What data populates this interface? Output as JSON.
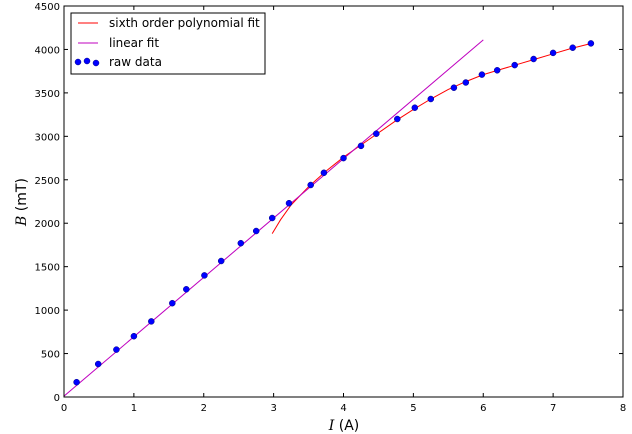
{
  "chart_data": {
    "type": "line",
    "title": "",
    "xlabel": "I (A)",
    "xlabel_var": "I",
    "xlabel_unit": " (A)",
    "ylabel": "B (mT)",
    "ylabel_var": "B",
    "ylabel_unit": " (mT)",
    "xlim": [
      0,
      8
    ],
    "ylim": [
      0,
      4500
    ],
    "xticks": [
      0,
      1,
      2,
      3,
      4,
      5,
      6,
      7,
      8
    ],
    "yticks": [
      0,
      500,
      1000,
      1500,
      2000,
      2500,
      3000,
      3500,
      4000,
      4500
    ],
    "grid": false,
    "legend_position": "top-left",
    "series": [
      {
        "name": "sixth order polynomial fit",
        "kind": "line",
        "color": "#ff0000",
        "x": [
          2.98,
          3.1,
          3.25,
          3.5,
          3.75,
          4.0,
          4.25,
          4.5,
          4.75,
          5.0,
          5.25,
          5.5,
          5.75,
          6.0,
          6.25,
          6.5,
          6.75,
          7.0,
          7.25,
          7.55
        ],
        "y": [
          1880,
          2040,
          2210,
          2420,
          2600,
          2760,
          2900,
          3040,
          3180,
          3310,
          3430,
          3540,
          3630,
          3710,
          3770,
          3830,
          3890,
          3950,
          4010,
          4070
        ]
      },
      {
        "name": "linear fit",
        "kind": "line",
        "color": "#bf00bf",
        "x": [
          0,
          6.0
        ],
        "y": [
          10,
          4110
        ]
      },
      {
        "name": "raw data",
        "kind": "scatter",
        "color": "#0000ff",
        "x": [
          0.18,
          0.49,
          0.75,
          1.0,
          1.25,
          1.55,
          1.75,
          2.01,
          2.25,
          2.53,
          2.75,
          2.98,
          3.22,
          3.53,
          3.72,
          4.0,
          4.25,
          4.47,
          4.77,
          5.02,
          5.25,
          5.58,
          5.75,
          5.98,
          6.2,
          6.45,
          6.72,
          7.0,
          7.28,
          7.54
        ],
        "y": [
          170,
          380,
          545,
          700,
          870,
          1080,
          1240,
          1400,
          1565,
          1770,
          1910,
          2060,
          2230,
          2440,
          2580,
          2750,
          2890,
          3030,
          3200,
          3330,
          3430,
          3560,
          3620,
          3710,
          3760,
          3820,
          3890,
          3960,
          4020,
          4070
        ]
      }
    ]
  }
}
